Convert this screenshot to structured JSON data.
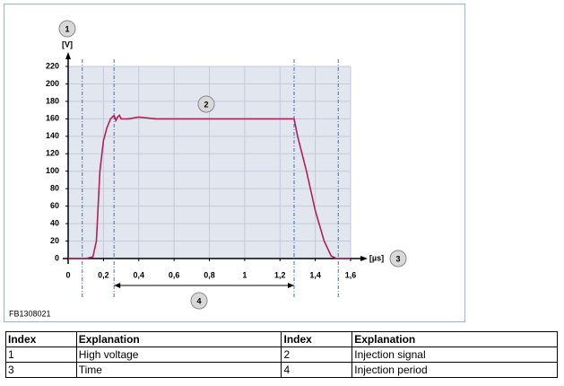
{
  "chart_data": {
    "type": "line",
    "y_unit": "[V]",
    "x_unit": "[µs]",
    "x": [
      0,
      0.1,
      0.14,
      0.16,
      0.18,
      0.2,
      0.22,
      0.24,
      0.26,
      0.27,
      0.28,
      0.29,
      0.3,
      0.34,
      0.4,
      0.5,
      1.28,
      1.3,
      1.35,
      1.4,
      1.45,
      1.49,
      1.52,
      1.6
    ],
    "series": [
      {
        "color": "#b0205a",
        "values": [
          0,
          0,
          2,
          20,
          100,
          135,
          150,
          160,
          164,
          158,
          162,
          164,
          160,
          160,
          162,
          160,
          160,
          140,
          100,
          55,
          20,
          3,
          0,
          0
        ]
      }
    ],
    "xlim": [
      0,
      1.6
    ],
    "ylim": [
      0,
      220
    ],
    "xticks": [
      0,
      {
        "value": 0.2,
        "label": "0,2"
      },
      {
        "value": 0.4,
        "label": "0,4"
      },
      {
        "value": 0.6,
        "label": "0,6"
      },
      {
        "value": 0.8,
        "label": "0,8"
      },
      1,
      {
        "value": 1.2,
        "label": "1,2"
      },
      {
        "value": 1.4,
        "label": "1,4"
      },
      {
        "value": 1.6,
        "label": "1,6"
      }
    ],
    "yticks": [
      0,
      20,
      40,
      60,
      80,
      100,
      120,
      140,
      160,
      180,
      200,
      220
    ],
    "grid": true,
    "markers": [
      0.08,
      0.26,
      1.28,
      1.53
    ],
    "period": [
      0.26,
      1.28
    ]
  },
  "callouts": [
    "1",
    "2",
    "3",
    "4"
  ],
  "figure_id": "FB1308021",
  "table": {
    "header": [
      "Index",
      "Explanation",
      "Index",
      "Explanation"
    ],
    "rows": [
      [
        "1",
        "High voltage",
        "2",
        "Injection signal"
      ],
      [
        "3",
        "Time",
        "4",
        "Injection period"
      ]
    ]
  }
}
